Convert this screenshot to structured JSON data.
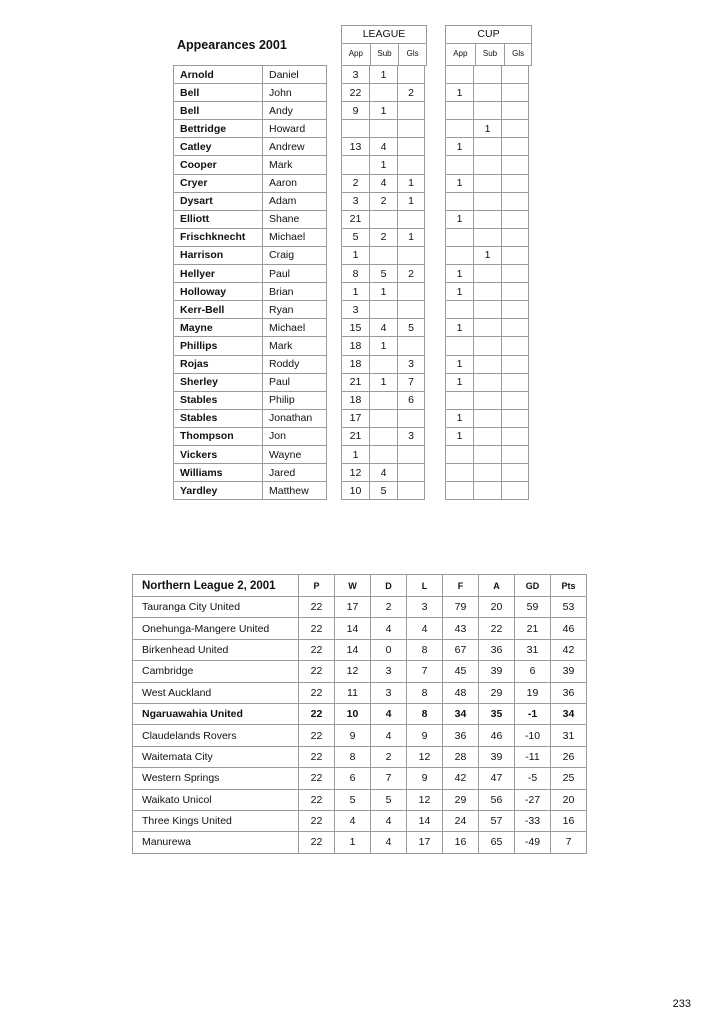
{
  "appearances": {
    "title": "Appearances 2001",
    "league_label": "LEAGUE",
    "cup_label": "CUP",
    "columns": [
      "App",
      "Sub",
      "Gls"
    ],
    "players": [
      {
        "surname": "Arnold",
        "first": "Daniel",
        "league": [
          "3",
          "1",
          ""
        ],
        "cup": [
          "",
          "",
          ""
        ]
      },
      {
        "surname": "Bell",
        "first": "John",
        "league": [
          "22",
          "",
          "2"
        ],
        "cup": [
          "1",
          "",
          ""
        ]
      },
      {
        "surname": "Bell",
        "first": "Andy",
        "league": [
          "9",
          "1",
          ""
        ],
        "cup": [
          "",
          "",
          ""
        ]
      },
      {
        "surname": "Bettridge",
        "first": "Howard",
        "league": [
          "",
          "",
          ""
        ],
        "cup": [
          "",
          "1",
          ""
        ]
      },
      {
        "surname": "Catley",
        "first": "Andrew",
        "league": [
          "13",
          "4",
          ""
        ],
        "cup": [
          "1",
          "",
          ""
        ]
      },
      {
        "surname": "Cooper",
        "first": "Mark",
        "league": [
          "",
          "1",
          ""
        ],
        "cup": [
          "",
          "",
          ""
        ]
      },
      {
        "surname": "Cryer",
        "first": "Aaron",
        "league": [
          "2",
          "4",
          "1"
        ],
        "cup": [
          "1",
          "",
          ""
        ]
      },
      {
        "surname": "Dysart",
        "first": "Adam",
        "league": [
          "3",
          "2",
          "1"
        ],
        "cup": [
          "",
          "",
          ""
        ]
      },
      {
        "surname": "Elliott",
        "first": "Shane",
        "league": [
          "21",
          "",
          ""
        ],
        "cup": [
          "1",
          "",
          ""
        ]
      },
      {
        "surname": "Frischknecht",
        "first": "Michael",
        "league": [
          "5",
          "2",
          "1"
        ],
        "cup": [
          "",
          "",
          ""
        ]
      },
      {
        "surname": "Harrison",
        "first": "Craig",
        "league": [
          "1",
          "",
          ""
        ],
        "cup": [
          "",
          "1",
          ""
        ]
      },
      {
        "surname": "Hellyer",
        "first": "Paul",
        "league": [
          "8",
          "5",
          "2"
        ],
        "cup": [
          "1",
          "",
          ""
        ]
      },
      {
        "surname": "Holloway",
        "first": "Brian",
        "league": [
          "1",
          "1",
          ""
        ],
        "cup": [
          "1",
          "",
          ""
        ]
      },
      {
        "surname": "Kerr-Bell",
        "first": "Ryan",
        "league": [
          "3",
          "",
          ""
        ],
        "cup": [
          "",
          "",
          ""
        ]
      },
      {
        "surname": "Mayne",
        "first": "Michael",
        "league": [
          "15",
          "4",
          "5"
        ],
        "cup": [
          "1",
          "",
          ""
        ]
      },
      {
        "surname": "Phillips",
        "first": "Mark",
        "league": [
          "18",
          "1",
          ""
        ],
        "cup": [
          "",
          "",
          ""
        ]
      },
      {
        "surname": "Rojas",
        "first": "Roddy",
        "league": [
          "18",
          "",
          "3"
        ],
        "cup": [
          "1",
          "",
          ""
        ]
      },
      {
        "surname": "Sherley",
        "first": "Paul",
        "league": [
          "21",
          "1",
          "7"
        ],
        "cup": [
          "1",
          "",
          ""
        ]
      },
      {
        "surname": "Stables",
        "first": "Philip",
        "league": [
          "18",
          "",
          "6"
        ],
        "cup": [
          "",
          "",
          ""
        ]
      },
      {
        "surname": "Stables",
        "first": "Jonathan",
        "league": [
          "17",
          "",
          ""
        ],
        "cup": [
          "1",
          "",
          ""
        ]
      },
      {
        "surname": "Thompson",
        "first": "Jon",
        "league": [
          "21",
          "",
          "3"
        ],
        "cup": [
          "1",
          "",
          ""
        ]
      },
      {
        "surname": "Vickers",
        "first": "Wayne",
        "league": [
          "1",
          "",
          ""
        ],
        "cup": [
          "",
          "",
          ""
        ]
      },
      {
        "surname": "Williams",
        "first": "Jared",
        "league": [
          "12",
          "4",
          ""
        ],
        "cup": [
          "",
          "",
          ""
        ]
      },
      {
        "surname": "Yardley",
        "first": "Matthew",
        "league": [
          "10",
          "5",
          ""
        ],
        "cup": [
          "",
          "",
          ""
        ]
      }
    ]
  },
  "league_table": {
    "title": "Northern League 2, 2001",
    "columns": [
      "P",
      "W",
      "D",
      "L",
      "F",
      "A",
      "GD",
      "Pts"
    ],
    "highlight_team": "Ngaruawahia United",
    "rows": [
      [
        "Tauranga City United",
        "22",
        "17",
        "2",
        "3",
        "79",
        "20",
        "59",
        "53"
      ],
      [
        "Onehunga-Mangere United",
        "22",
        "14",
        "4",
        "4",
        "43",
        "22",
        "21",
        "46"
      ],
      [
        "Birkenhead United",
        "22",
        "14",
        "0",
        "8",
        "67",
        "36",
        "31",
        "42"
      ],
      [
        "Cambridge",
        "22",
        "12",
        "3",
        "7",
        "45",
        "39",
        "6",
        "39"
      ],
      [
        "West Auckland",
        "22",
        "11",
        "3",
        "8",
        "48",
        "29",
        "19",
        "36"
      ],
      [
        "Ngaruawahia United",
        "22",
        "10",
        "4",
        "8",
        "34",
        "35",
        "-1",
        "34"
      ],
      [
        "Claudelands Rovers",
        "22",
        "9",
        "4",
        "9",
        "36",
        "46",
        "-10",
        "31"
      ],
      [
        "Waitemata City",
        "22",
        "8",
        "2",
        "12",
        "28",
        "39",
        "-11",
        "26"
      ],
      [
        "Western Springs",
        "22",
        "6",
        "7",
        "9",
        "42",
        "47",
        "-5",
        "25"
      ],
      [
        "Waikato Unicol",
        "22",
        "5",
        "5",
        "12",
        "29",
        "56",
        "-27",
        "20"
      ],
      [
        "Three Kings United",
        "22",
        "4",
        "4",
        "14",
        "24",
        "57",
        "-33",
        "16"
      ],
      [
        "Manurewa",
        "22",
        "1",
        "4",
        "17",
        "16",
        "65",
        "-49",
        "7"
      ]
    ]
  },
  "page_number": "233"
}
